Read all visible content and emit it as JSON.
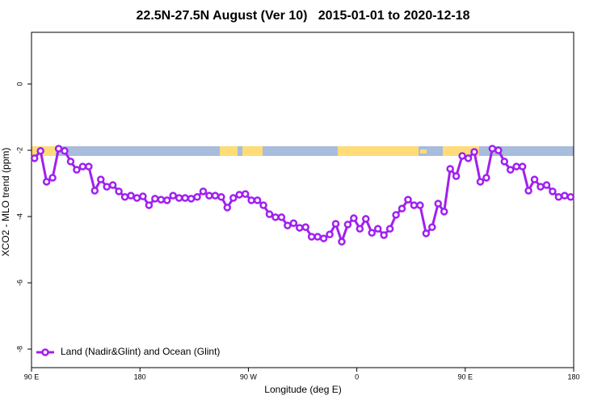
{
  "chart_data": {
    "type": "line",
    "title": "22.5N-27.5N August (Ver 10)   2015-01-01 to 2020-12-18",
    "x_label": "Longitude (deg E)",
    "y_label": "XCO2 - MLO trend (ppm)",
    "x": [
      92.5,
      97.5,
      102.5,
      107.5,
      112.5,
      117.5,
      122.5,
      127.5,
      132.5,
      137.5,
      142.5,
      147.5,
      152.5,
      157.5,
      162.5,
      167.5,
      172.5,
      177.5,
      182.5,
      187.5,
      192.5,
      197.5,
      202.5,
      207.5,
      212.5,
      217.5,
      222.5,
      227.5,
      232.5,
      237.5,
      242.5,
      247.5,
      252.5,
      257.5,
      262.5,
      267.5,
      272.5,
      277.5,
      282.5,
      287.5,
      292.5,
      297.5,
      302.5,
      307.5,
      312.5,
      317.5,
      322.5,
      327.5,
      332.5,
      337.5,
      342.5,
      347.5,
      352.5,
      357.5,
      362.5,
      367.5,
      372.5,
      377.5,
      382.5,
      387.5,
      392.5,
      397.5,
      402.5,
      407.5,
      412.5,
      417.5,
      422.5,
      427.5,
      432.5,
      437.5,
      442.5,
      447.5,
      452.5,
      457.5,
      462.5,
      467.5,
      472.5,
      477.5,
      482.5,
      487.5,
      492.5,
      497.5,
      502.5,
      507.5,
      512.5,
      517.5,
      522.5,
      527.5,
      532.5,
      537.5
    ],
    "series": [
      {
        "name": "Land (Nadir&Glint) and Ocean (Glint)",
        "color": "#a020f0",
        "values": [
          -2.24,
          -2.02,
          -2.95,
          -2.83,
          -1.95,
          -2.02,
          -2.34,
          -2.59,
          -2.49,
          -2.49,
          -3.22,
          -2.88,
          -3.1,
          -3.05,
          -3.24,
          -3.41,
          -3.37,
          -3.44,
          -3.39,
          -3.66,
          -3.46,
          -3.49,
          -3.51,
          -3.37,
          -3.44,
          -3.44,
          -3.46,
          -3.41,
          -3.24,
          -3.37,
          -3.37,
          -3.41,
          -3.73,
          -3.44,
          -3.34,
          -3.32,
          -3.51,
          -3.51,
          -3.66,
          -3.93,
          -4.02,
          -4.02,
          -4.27,
          -4.2,
          -4.34,
          -4.32,
          -4.61,
          -4.61,
          -4.66,
          -4.54,
          -4.22,
          -4.76,
          -4.24,
          -4.05,
          -4.37,
          -4.07,
          -4.49,
          -4.37,
          -4.56,
          -4.37,
          -3.95,
          -3.76,
          -3.49,
          -3.66,
          -3.66,
          -4.51,
          -4.32,
          -3.61,
          -3.85,
          -2.56,
          -2.78,
          -2.17,
          -2.24,
          -2.05,
          -2.95,
          -2.83,
          -1.95,
          -2.0,
          -2.34,
          -2.59,
          -2.49,
          -2.49,
          -3.22,
          -2.88,
          -3.1,
          -3.05,
          -3.24,
          -3.41,
          -3.37,
          -3.41
        ]
      }
    ],
    "xlim": [
      90,
      540
    ],
    "xticks": [
      {
        "value": 90,
        "label": "90 E"
      },
      180,
      {
        "value": 270,
        "label": "90 W"
      },
      {
        "value": 360,
        "label": "0"
      },
      {
        "value": 450,
        "label": "90 E"
      },
      {
        "value": 540,
        "label": "180"
      }
    ],
    "ylim": [
      -8.56,
      1.56
    ],
    "yticks": [
      -8,
      -6,
      -4,
      -2,
      0
    ],
    "legend": "bottom-left"
  }
}
